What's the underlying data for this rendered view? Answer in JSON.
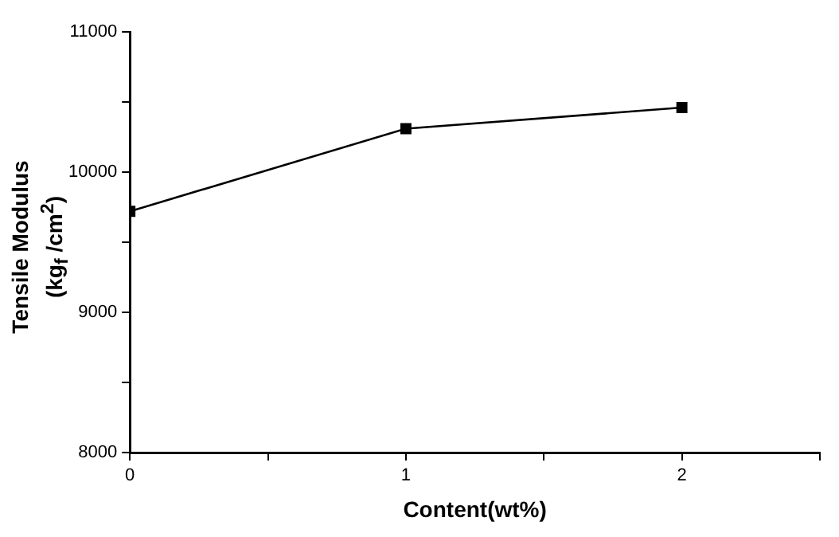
{
  "chart_data": {
    "type": "line",
    "xlabel": "Content(wt%)",
    "ylabel": "Tensile Modulus\n(kg$_{f}$ /cm$^{2}$)",
    "x": [
      0,
      1,
      2
    ],
    "series": [
      {
        "color": "#000000",
        "values": [
          9720,
          10310,
          10460
        ]
      }
    ],
    "xlim": [
      0,
      2.5
    ],
    "xticks": [
      0,
      {
        "value": 0.5,
        "label": null
      },
      1,
      {
        "value": 1.5,
        "label": null
      },
      2,
      {
        "value": 2.5,
        "label": null
      }
    ],
    "ylim": [
      8000,
      11000
    ],
    "yticks": [
      8000,
      {
        "value": 8500,
        "label": null
      },
      9000,
      {
        "value": 9500,
        "label": null
      },
      10000,
      {
        "value": 10500,
        "label": null
      },
      11000
    ],
    "grid": false,
    "legend": false,
    "marker": "square",
    "line_style": "solid"
  }
}
